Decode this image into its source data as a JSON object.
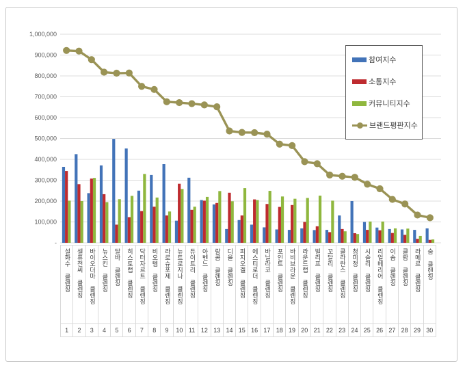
{
  "chart_data": {
    "type": "bar+line",
    "title": "",
    "xlabel": "",
    "ylabel": "",
    "ylim": [
      0,
      1000000
    ],
    "ytick_step": 100000,
    "ytick_labels_top_to_bottom": [
      "1,000,000",
      "900,000",
      "800,000",
      "700,000",
      "600,000",
      "500,000",
      "400,000",
      "300,000",
      "200,000",
      "100,000",
      "-"
    ],
    "grid": "horizontal",
    "legend_position": "upper-right-box",
    "categories": [
      "설화수 클렌징",
      "셀퓨전씨 클렌징",
      "바이오더마 클렌징",
      "뉴스킨 클렌징",
      "달바 클렌징",
      "히스토랩 클렌징",
      "닥터자르트 클렌징",
      "비오템 클렌징",
      "라로슈포제 클렌징",
      "뉴트로지나 클렌징",
      "듀이트리 클렌징",
      "아벤느 클렌징",
      "랑콤 클렌징",
      "디올 클렌징",
      "피지오겔 클렌징",
      "에스티로더 클렌징",
      "바닐라코 클렌징",
      "포인트 클렌징",
      "바비브라운 클렌징",
      "라운드랩 클렌징",
      "빌리프 클렌징",
      "꼬달리 클렌징",
      "클라란스 클렌징",
      "청미정 클렌징",
      "시슬리 클렌징",
      "리얼베리어 클렌징",
      "이솝 클렌징",
      "클랍 클렌징",
      "라메르 클렌징",
      "숨 클렌징"
    ],
    "category_numbers": [
      "1",
      "2",
      "3",
      "4",
      "5",
      "6",
      "7",
      "8",
      "9",
      "10",
      "11",
      "12",
      "13",
      "14",
      "15",
      "16",
      "17",
      "18",
      "19",
      "20",
      "21",
      "22",
      "23",
      "24",
      "25",
      "26",
      "27",
      "28",
      "29",
      "30"
    ],
    "series": [
      {
        "name": "참여지수",
        "type": "bar",
        "color": "#4273B8",
        "values": [
          364000,
          425000,
          238000,
          371000,
          498000,
          452000,
          250000,
          325000,
          377000,
          106000,
          312000,
          205000,
          184000,
          66000,
          109000,
          87000,
          74000,
          64000,
          62000,
          69000,
          61000,
          62000,
          131000,
          200000,
          100000,
          73000,
          66000,
          64000,
          62000,
          69000
        ]
      },
      {
        "name": "소통지수",
        "type": "bar",
        "color": "#BE2B2F",
        "values": [
          344000,
          281000,
          308000,
          233000,
          87000,
          123000,
          152000,
          173000,
          131000,
          283000,
          158000,
          202000,
          191000,
          240000,
          131000,
          208000,
          186000,
          172000,
          181000,
          100000,
          79000,
          51000,
          66000,
          46000,
          62000,
          60000,
          47000,
          38000,
          19000,
          14000
        ]
      },
      {
        "name": "커뮤니티지수",
        "type": "bar",
        "color": "#8FB73E",
        "values": [
          202000,
          200000,
          311000,
          195000,
          209000,
          225000,
          330000,
          217000,
          150000,
          258000,
          173000,
          220000,
          248000,
          199000,
          262000,
          205000,
          249000,
          222000,
          211000,
          215000,
          226000,
          202000,
          55000,
          42000,
          102000,
          102000,
          69000,
          68000,
          33000,
          16000
        ]
      },
      {
        "name": "브랜드평판지수",
        "type": "line",
        "color": "#9A9355",
        "values": [
          922000,
          919000,
          878000,
          818000,
          813000,
          814000,
          750000,
          735000,
          676000,
          672000,
          667000,
          661000,
          652000,
          536000,
          529000,
          528000,
          521000,
          473000,
          466000,
          389000,
          379000,
          325000,
          319000,
          314000,
          281000,
          259000,
          208000,
          186000,
          133000,
          120000
        ]
      }
    ],
    "colors": {
      "gridline": "#dcdcdc",
      "axis_text": "#595959",
      "category_text": "#404040",
      "legend_border": "#595959",
      "frame_border": "#c6c6c6"
    }
  }
}
